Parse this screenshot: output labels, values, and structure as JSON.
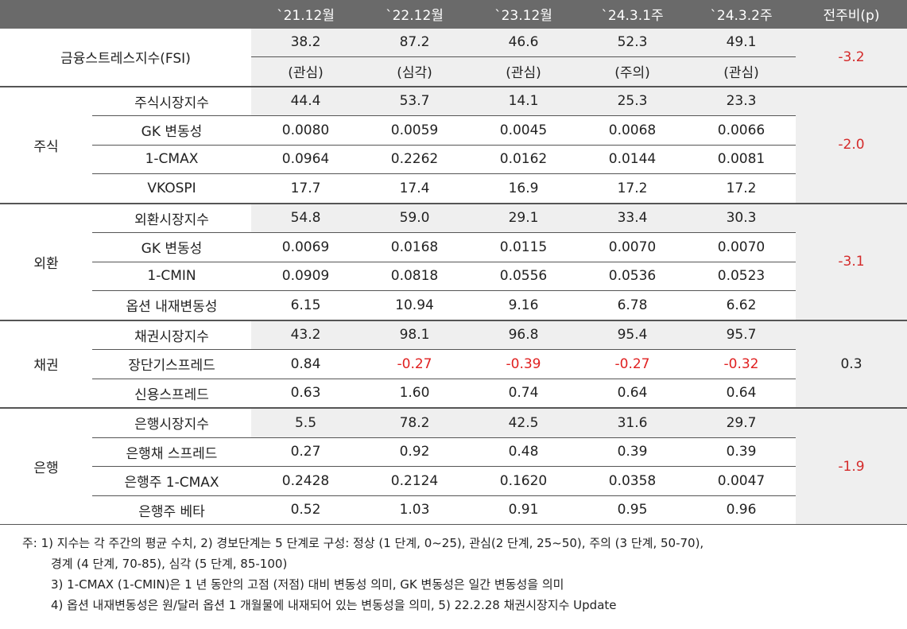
{
  "header": {
    "columns": [
      "",
      "",
      "`21.12월",
      "`22.12월",
      "`23.12월",
      "`24.3.1주",
      "`24.3.2주",
      "전주비(p)"
    ]
  },
  "fsi": {
    "name": "금융스트레스지수(FSI)",
    "values": [
      "38.2",
      "87.2",
      "46.6",
      "52.3",
      "49.1"
    ],
    "stages": [
      "(관심)",
      "(심각)",
      "(관심)",
      "(주의)",
      "(관심)"
    ],
    "delta": "-3.2"
  },
  "groups": [
    {
      "name": "주식",
      "delta": "-2.0",
      "rows": [
        {
          "name": "주식시장지수",
          "values": [
            "44.4",
            "53.7",
            "14.1",
            "25.3",
            "23.3"
          ]
        },
        {
          "name": "GK 변동성",
          "values": [
            "0.0080",
            "0.0059",
            "0.0045",
            "0.0068",
            "0.0066"
          ]
        },
        {
          "name": "1-CMAX",
          "values": [
            "0.0964",
            "0.2262",
            "0.0162",
            "0.0144",
            "0.0081"
          ]
        },
        {
          "name": "VKOSPI",
          "values": [
            "17.7",
            "17.4",
            "16.9",
            "17.2",
            "17.2"
          ]
        }
      ]
    },
    {
      "name": "외환",
      "delta": "-3.1",
      "rows": [
        {
          "name": "외환시장지수",
          "values": [
            "54.8",
            "59.0",
            "29.1",
            "33.4",
            "30.3"
          ]
        },
        {
          "name": "GK 변동성",
          "values": [
            "0.0069",
            "0.0168",
            "0.0115",
            "0.0070",
            "0.0070"
          ]
        },
        {
          "name": "1-CMIN",
          "values": [
            "0.0909",
            "0.0818",
            "0.0556",
            "0.0536",
            "0.0523"
          ]
        },
        {
          "name": "옵션 내재변동성",
          "values": [
            "6.15",
            "10.94",
            "9.16",
            "6.78",
            "6.62"
          ]
        }
      ]
    },
    {
      "name": "채권",
      "delta": "0.3",
      "rows": [
        {
          "name": "채권시장지수",
          "values": [
            "43.2",
            "98.1",
            "96.8",
            "95.4",
            "95.7"
          ]
        },
        {
          "name": "장단기스프레드",
          "values": [
            "0.84",
            "-0.27",
            "-0.39",
            "-0.27",
            "-0.32"
          ]
        },
        {
          "name": "신용스프레드",
          "values": [
            "0.63",
            "1.60",
            "0.74",
            "0.64",
            "0.64"
          ]
        }
      ]
    },
    {
      "name": "은행",
      "delta": "-1.9",
      "rows": [
        {
          "name": "은행시장지수",
          "values": [
            "5.5",
            "78.2",
            "42.5",
            "31.6",
            "29.7"
          ]
        },
        {
          "name": "은행채 스프레드",
          "values": [
            "0.27",
            "0.92",
            "0.48",
            "0.39",
            "0.39"
          ]
        },
        {
          "name": "은행주 1-CMAX",
          "values": [
            "0.2428",
            "0.2124",
            "0.1620",
            "0.0358",
            "0.0047"
          ]
        },
        {
          "name": "은행주 베타",
          "values": [
            "0.52",
            "1.03",
            "0.91",
            "0.95",
            "0.96"
          ]
        }
      ]
    }
  ],
  "notes": [
    "주: 1) 지수는 각 주간의 평균 수치, 2) 경보단계는 5 단계로 구성: 정상 (1 단계, 0~25), 관심(2 단계, 25~50), 주의 (3 단계, 50-70),",
    "경계 (4 단계, 70-85), 심각 (5 단계, 85-100)",
    "3) 1-CMAX (1-CMIN)은 1 년 동안의 고점 (저점) 대비 변동성 의미, GK 변동성은 일간 변동성을 의미",
    "4) 옵션 내재변동성은 원/달러 옵션 1 개월물에 내재되어 있는 변동성을 의미, 5) 22.2.28 채권시장지수 Update"
  ]
}
